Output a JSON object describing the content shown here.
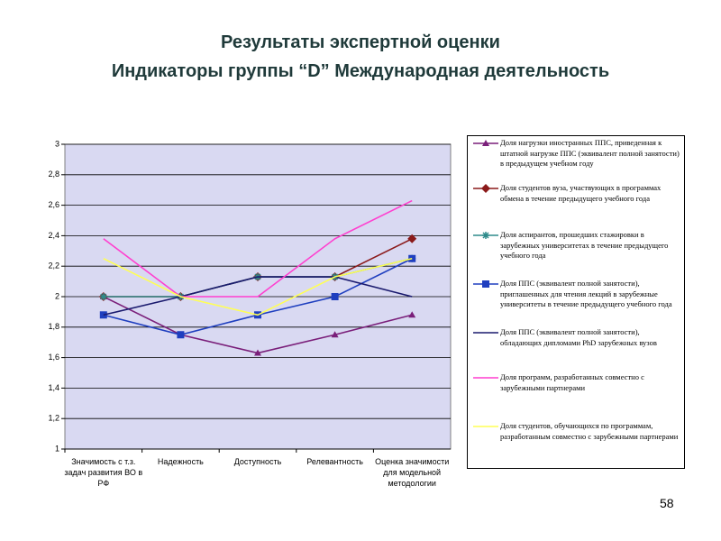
{
  "chart_data": {
    "type": "line",
    "title": "Результаты экспертной оценки",
    "subtitle": "Индикаторы группы “D” Международная деятельность",
    "categories": [
      "Значимость с т.з. задач развития ВО в РФ",
      "Надежность",
      "Доступность",
      "Релевантность",
      "Оценка значимости для модельной методологии"
    ],
    "ylim": [
      1,
      3
    ],
    "yticks": [
      1,
      {
        "value": 1.2,
        "label": "1,2"
      },
      {
        "value": 1.4,
        "label": "1,4"
      },
      {
        "value": 1.6,
        "label": "1,6"
      },
      {
        "value": 1.8,
        "label": "1,8"
      },
      2,
      {
        "value": 2.2,
        "label": "2,2"
      },
      {
        "value": 2.4,
        "label": "2,4"
      },
      {
        "value": 2.6,
        "label": "2,6"
      },
      {
        "value": 2.8,
        "label": "2,8"
      },
      3
    ],
    "grid": true,
    "legend": "right",
    "series": [
      {
        "name": "Доля нагрузки иностранных ППС, приведенная к штатной нагрузке ППС (эквивалент полной занятости) в предыдущем учебном году",
        "color": "#7A1F7A",
        "marker": "triangle",
        "values": [
          2,
          1.75,
          1.63,
          1.75,
          1.88
        ]
      },
      {
        "name": "Доля студентов вуза, участвующих в программах обмена в течение предыдущего учебного года",
        "color": "#8B1A1A",
        "marker": "diamond",
        "values": [
          2,
          2,
          2.13,
          2.13,
          2.38
        ]
      },
      {
        "name": "Доля аспирантов, прошедших стажировки в зарубежных университетах в течение предыдущего учебного года",
        "color": "#2E8B8B",
        "marker": "star",
        "values": [
          2,
          2,
          2.13,
          2.13,
          2.25
        ]
      },
      {
        "name": "Доля ППС (эквивалент полной занятости), приглашенных для чтения лекций в зарубежные университеты в течение предыдущего учебного года",
        "color": "#1F3FBF",
        "marker": "square",
        "values": [
          1.88,
          1.75,
          1.88,
          2,
          2.25
        ]
      },
      {
        "name": "Доля ППС (эквивалент полной занятости), обладающих дипломами PhD зарубежных вузов",
        "color": "#1A1A6E",
        "marker": "none",
        "values": [
          1.88,
          2,
          2.13,
          2.13,
          2
        ]
      },
      {
        "name": "Доля программ, разработанных совместно с зарубежными партнерами",
        "color": "#FF3FCF",
        "marker": "none",
        "values": [
          2.38,
          2,
          2,
          2.38,
          2.63
        ]
      },
      {
        "name": "Доля студентов, обучающихся по программам, разработанным совместно с зарубежными партнерами",
        "color": "#FFFF55",
        "marker": "none",
        "values": [
          2.25,
          2,
          1.88,
          2.13,
          2.25
        ]
      }
    ]
  },
  "slide_number": "58"
}
